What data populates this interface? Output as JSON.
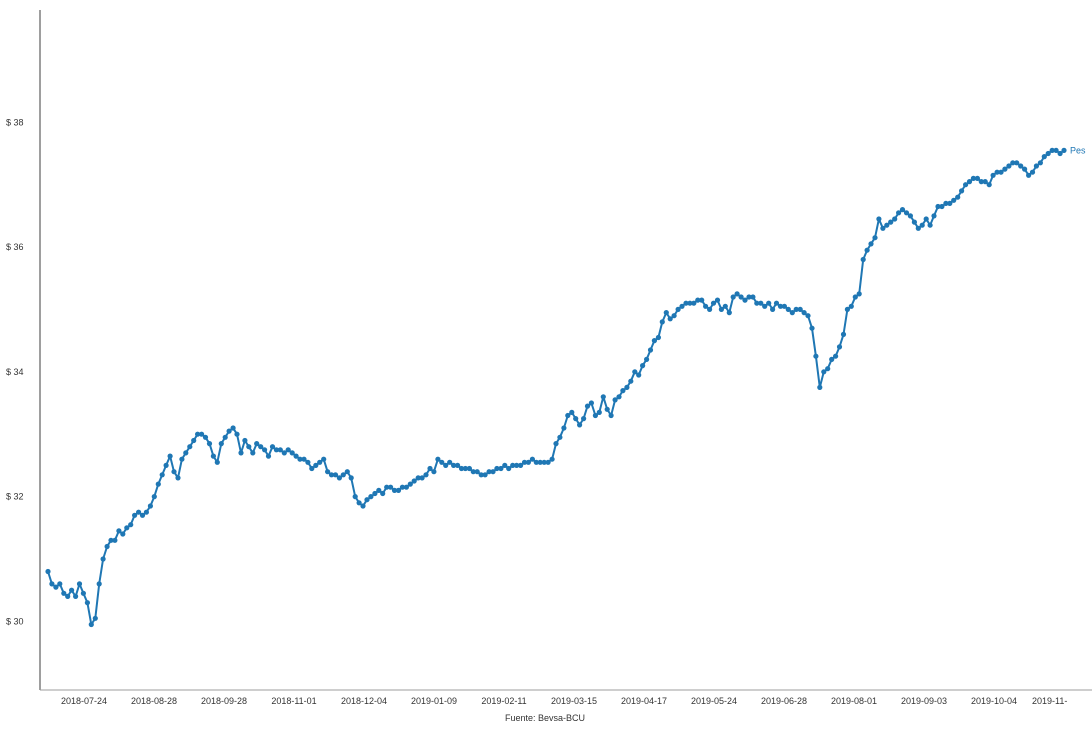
{
  "chart_data": {
    "type": "line",
    "ylim": [
      28.9,
      39.8
    ],
    "y_ticks": [
      30,
      32,
      34,
      36,
      38
    ],
    "y_tick_labels": [
      "$ 30",
      "$ 32",
      "$ 34",
      "$ 36",
      "$ 38"
    ],
    "x_tick_labels": [
      "2018-07-24",
      "2018-08-28",
      "2018-09-28",
      "2018-11-01",
      "2018-12-04",
      "2019-01-09",
      "2019-02-11",
      "2019-03-15",
      "2019-04-17",
      "2019-05-24",
      "2019-06-28",
      "2019-08-01",
      "2019-09-03",
      "2019-10-04",
      "2019-11-"
    ],
    "source": "Fuente: Bevsa-BCU",
    "series": [
      {
        "name": "Pes",
        "color": "#1f77b4",
        "values": [
          30.8,
          30.6,
          30.55,
          30.6,
          30.45,
          30.4,
          30.5,
          30.4,
          30.6,
          30.45,
          30.3,
          29.95,
          30.05,
          30.6,
          31.0,
          31.2,
          31.3,
          31.3,
          31.45,
          31.4,
          31.5,
          31.55,
          31.7,
          31.75,
          31.7,
          31.75,
          31.85,
          32.0,
          32.2,
          32.35,
          32.5,
          32.65,
          32.4,
          32.3,
          32.6,
          32.7,
          32.8,
          32.9,
          33.0,
          33.0,
          32.95,
          32.85,
          32.65,
          32.55,
          32.85,
          32.95,
          33.05,
          33.1,
          33.0,
          32.7,
          32.9,
          32.8,
          32.7,
          32.85,
          32.8,
          32.75,
          32.65,
          32.8,
          32.75,
          32.75,
          32.7,
          32.75,
          32.7,
          32.65,
          32.6,
          32.6,
          32.55,
          32.45,
          32.5,
          32.55,
          32.6,
          32.4,
          32.35,
          32.35,
          32.3,
          32.35,
          32.4,
          32.3,
          32.0,
          31.9,
          31.85,
          31.95,
          32.0,
          32.05,
          32.1,
          32.05,
          32.15,
          32.15,
          32.1,
          32.1,
          32.15,
          32.15,
          32.2,
          32.25,
          32.3,
          32.3,
          32.35,
          32.45,
          32.4,
          32.6,
          32.55,
          32.5,
          32.55,
          32.5,
          32.5,
          32.45,
          32.45,
          32.45,
          32.4,
          32.4,
          32.35,
          32.35,
          32.4,
          32.4,
          32.45,
          32.45,
          32.5,
          32.45,
          32.5,
          32.5,
          32.5,
          32.55,
          32.55,
          32.6,
          32.55,
          32.55,
          32.55,
          32.55,
          32.6,
          32.85,
          32.95,
          33.1,
          33.3,
          33.35,
          33.25,
          33.15,
          33.25,
          33.45,
          33.5,
          33.3,
          33.35,
          33.6,
          33.4,
          33.3,
          33.55,
          33.6,
          33.7,
          33.75,
          33.85,
          34.0,
          33.95,
          34.1,
          34.2,
          34.35,
          34.5,
          34.55,
          34.8,
          34.95,
          34.85,
          34.9,
          35.0,
          35.05,
          35.1,
          35.1,
          35.1,
          35.15,
          35.15,
          35.05,
          35.0,
          35.1,
          35.15,
          35.0,
          35.05,
          34.95,
          35.2,
          35.25,
          35.2,
          35.15,
          35.2,
          35.2,
          35.1,
          35.1,
          35.05,
          35.1,
          35.0,
          35.1,
          35.05,
          35.05,
          35.0,
          34.95,
          35.0,
          35.0,
          34.95,
          34.9,
          34.7,
          34.25,
          33.75,
          34.0,
          34.05,
          34.2,
          34.25,
          34.4,
          34.6,
          35.0,
          35.05,
          35.2,
          35.25,
          35.8,
          35.95,
          36.05,
          36.15,
          36.45,
          36.3,
          36.35,
          36.4,
          36.45,
          36.55,
          36.6,
          36.55,
          36.5,
          36.4,
          36.3,
          36.35,
          36.45,
          36.35,
          36.5,
          36.65,
          36.65,
          36.7,
          36.7,
          36.75,
          36.8,
          36.9,
          37.0,
          37.05,
          37.1,
          37.1,
          37.05,
          37.05,
          37.0,
          37.15,
          37.2,
          37.2,
          37.25,
          37.3,
          37.35,
          37.35,
          37.3,
          37.25,
          37.15,
          37.2,
          37.3,
          37.35,
          37.45,
          37.5,
          37.55,
          37.55,
          37.5,
          37.55
        ]
      }
    ]
  }
}
